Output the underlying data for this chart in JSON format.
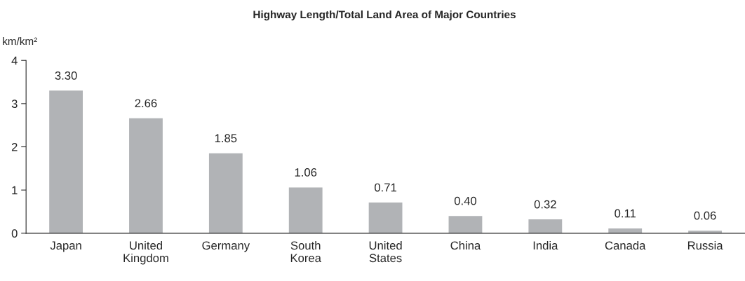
{
  "chart_data": {
    "type": "bar",
    "title": "Highway Length/Total Land Area of Major Countries",
    "ylabel": "km/km²",
    "categories": [
      "Japan",
      "United\nKingdom",
      "Germany",
      "South\nKorea",
      "United\nStates",
      "China",
      "India",
      "Canada",
      "Russia"
    ],
    "values": [
      3.3,
      2.66,
      1.85,
      1.06,
      0.71,
      0.4,
      0.32,
      0.11,
      0.06
    ],
    "value_labels": [
      "3.30",
      "2.66",
      "1.85",
      "1.06",
      "0.71",
      "0.40",
      "0.32",
      "0.11",
      "0.06"
    ],
    "color": "#b1b3b6",
    "ylim": [
      0,
      4
    ],
    "yticks": [
      0,
      1,
      2,
      3,
      4
    ],
    "grid": false,
    "legend": false
  }
}
